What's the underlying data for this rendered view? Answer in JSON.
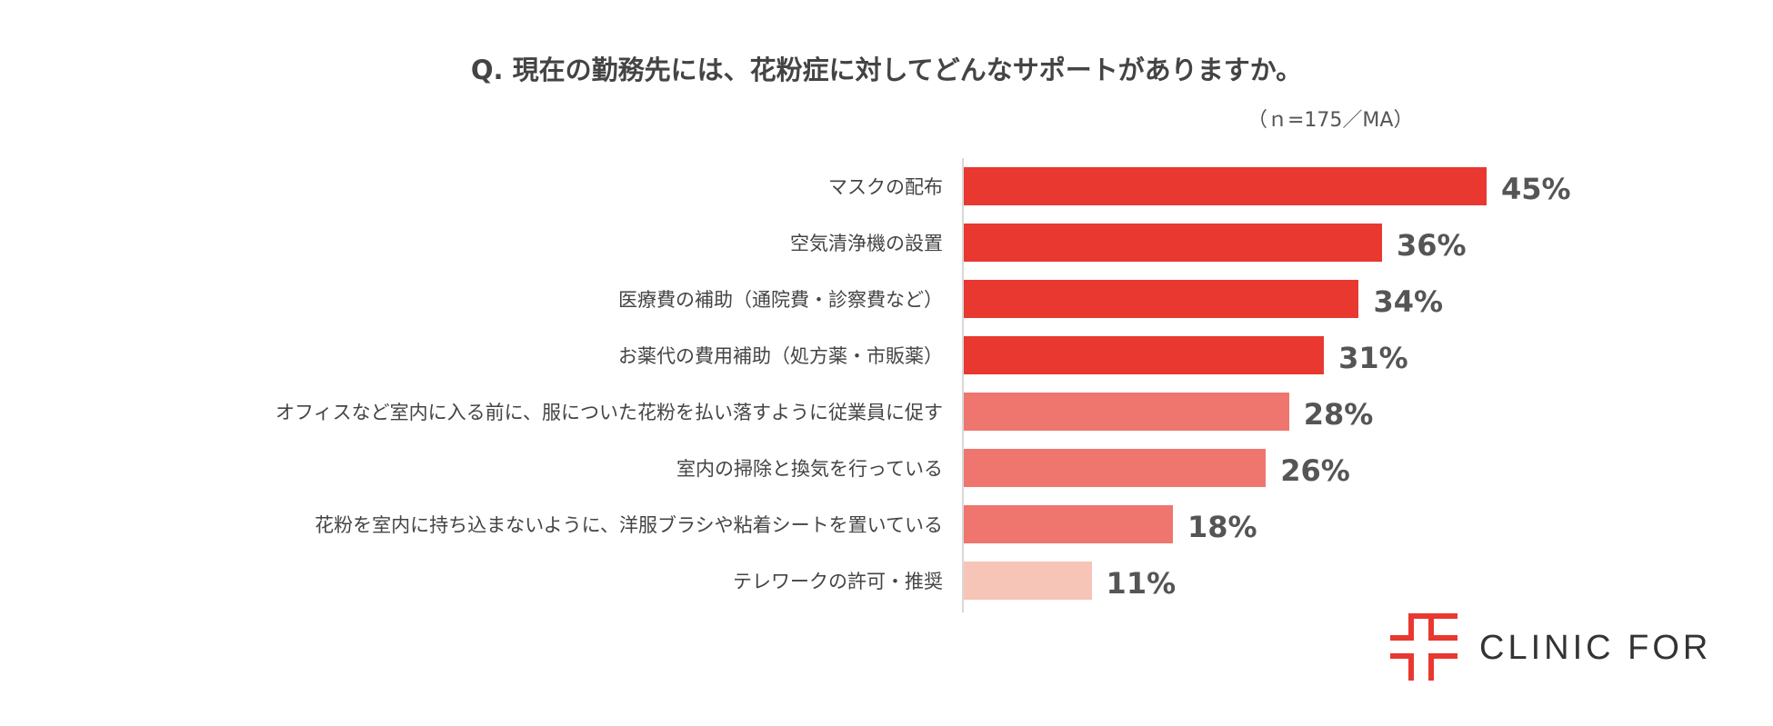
{
  "chart_data": {
    "type": "bar",
    "orientation": "horizontal",
    "title": "Q. 現在の勤務先には、花粉症に対してどんなサポートがありますか。",
    "note": "（ｎ=175／MA）",
    "categories": [
      "マスクの配布",
      "空気清浄機の設置",
      "医療費の補助（通院費・診察費など）",
      "お薬代の費用補助（処方薬・市販薬）",
      "オフィスなど室内に入る前に、服についた花粉を払い落すように従業員に促す",
      "室内の掃除と換気を行っている",
      "花粉を室内に持ち込まないように、洋服ブラシや粘着シートを置いている",
      "テレワークの許可・推奨"
    ],
    "values": [
      45,
      36,
      34,
      31,
      28,
      26,
      18,
      11
    ],
    "value_labels": [
      "45%",
      "36%",
      "34%",
      "31%",
      "28%",
      "26%",
      "18%",
      "11%"
    ],
    "bar_colors": [
      "#e83830",
      "#e83830",
      "#e83830",
      "#e83830",
      "#ee766f",
      "#ee766f",
      "#ee766f",
      "#f7c4b8"
    ],
    "xlim": [
      0,
      45
    ],
    "grid": false
  },
  "logo": {
    "text": "CLINIC FOR",
    "color": "#e83830"
  }
}
